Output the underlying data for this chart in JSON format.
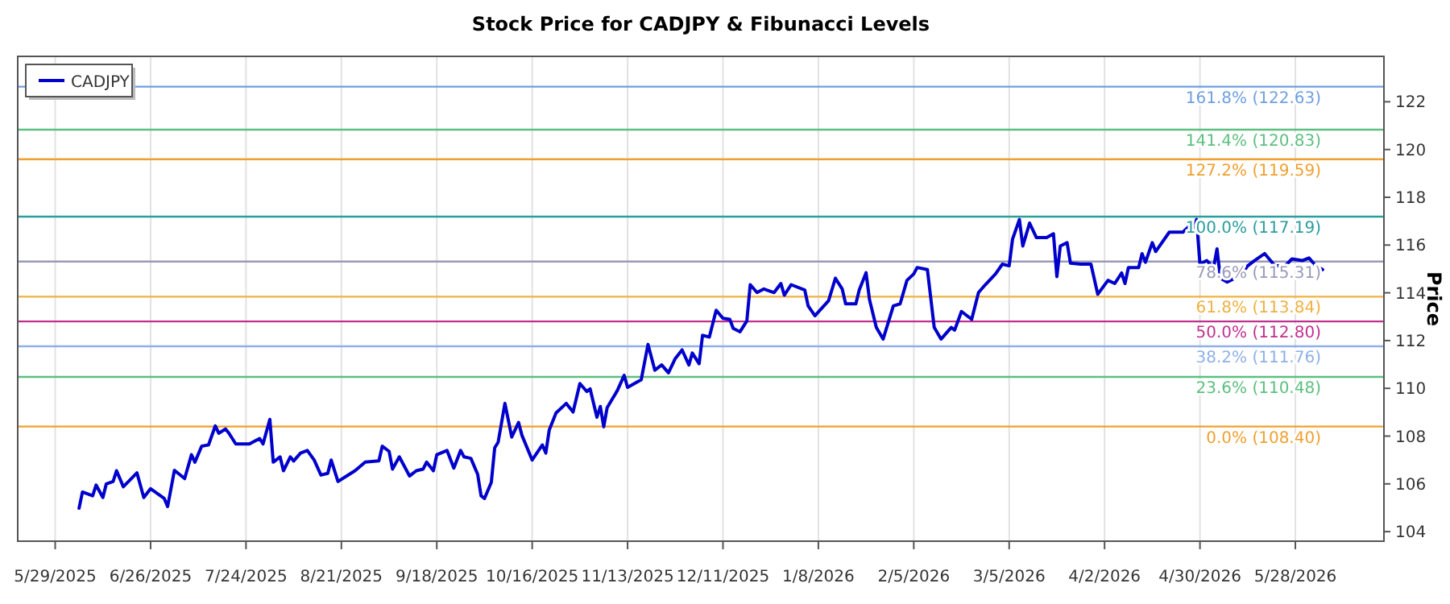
{
  "chart_data": {
    "type": "line",
    "title": "Stock Price for CADJPY & Fibunacci Levels",
    "ylabel": "Price",
    "x": [
      "2025-06-05",
      "2025-06-06",
      "2025-06-09",
      "2025-06-10",
      "2025-06-12",
      "2025-06-13",
      "2025-06-15",
      "2025-06-16",
      "2025-06-18",
      "2025-06-22",
      "2025-06-24",
      "2025-06-26",
      "2025-06-30",
      "2025-07-01",
      "2025-07-03",
      "2025-07-06",
      "2025-07-08",
      "2025-07-09",
      "2025-07-11",
      "2025-07-13",
      "2025-07-15",
      "2025-07-16",
      "2025-07-18",
      "2025-07-19",
      "2025-07-21",
      "2025-07-25",
      "2025-07-28",
      "2025-07-29",
      "2025-07-31",
      "2025-08-01",
      "2025-08-03",
      "2025-08-04",
      "2025-08-06",
      "2025-08-07",
      "2025-08-09",
      "2025-08-11",
      "2025-08-13",
      "2025-08-15",
      "2025-08-17",
      "2025-08-18",
      "2025-08-20",
      "2025-08-22",
      "2025-08-25",
      "2025-08-28",
      "2025-09-01",
      "2025-09-02",
      "2025-09-04",
      "2025-09-05",
      "2025-09-07",
      "2025-09-10",
      "2025-09-12",
      "2025-09-14",
      "2025-09-15",
      "2025-09-17",
      "2025-09-18",
      "2025-09-21",
      "2025-09-23",
      "2025-09-25",
      "2025-09-26",
      "2025-09-28",
      "2025-09-30",
      "2025-10-01",
      "2025-10-02",
      "2025-10-04",
      "2025-10-05",
      "2025-10-06",
      "2025-10-08",
      "2025-10-10",
      "2025-10-12",
      "2025-10-13",
      "2025-10-16",
      "2025-10-19",
      "2025-10-20",
      "2025-10-21",
      "2025-10-23",
      "2025-10-26",
      "2025-10-28",
      "2025-10-30",
      "2025-11-01",
      "2025-11-02",
      "2025-11-04",
      "2025-11-05",
      "2025-11-06",
      "2025-11-07",
      "2025-11-10",
      "2025-11-12",
      "2025-11-13",
      "2025-11-17",
      "2025-11-19",
      "2025-11-21",
      "2025-11-23",
      "2025-11-25",
      "2025-11-27",
      "2025-11-29",
      "2025-12-01",
      "2025-12-02",
      "2025-12-04",
      "2025-12-05",
      "2025-12-07",
      "2025-12-09",
      "2025-12-11",
      "2025-12-13",
      "2025-12-14",
      "2025-12-16",
      "2025-12-18",
      "2025-12-19",
      "2025-12-21",
      "2025-12-23",
      "2025-12-26",
      "2025-12-28",
      "2025-12-29",
      "2025-12-31",
      "2026-01-04",
      "2026-01-05",
      "2026-01-07",
      "2026-01-11",
      "2026-01-13",
      "2026-01-15",
      "2026-01-16",
      "2026-01-19",
      "2026-01-20",
      "2026-01-22",
      "2026-01-23",
      "2026-01-25",
      "2026-01-27",
      "2026-01-30",
      "2026-02-01",
      "2026-02-03",
      "2026-02-05",
      "2026-02-06",
      "2026-02-09",
      "2026-02-11",
      "2026-02-13",
      "2026-02-16",
      "2026-02-17",
      "2026-02-19",
      "2026-02-22",
      "2026-02-24",
      "2026-02-26",
      "2026-03-01",
      "2026-03-03",
      "2026-03-05",
      "2026-03-06",
      "2026-03-08",
      "2026-03-09",
      "2026-03-11",
      "2026-03-13",
      "2026-03-16",
      "2026-03-18",
      "2026-03-19",
      "2026-03-20",
      "2026-03-22",
      "2026-03-23",
      "2026-03-26",
      "2026-03-29",
      "2026-03-31",
      "2026-04-03",
      "2026-04-05",
      "2026-04-07",
      "2026-04-08",
      "2026-04-09",
      "2026-04-12",
      "2026-04-13",
      "2026-04-14",
      "2026-04-16",
      "2026-04-17",
      "2026-04-21",
      "2026-04-25",
      "2026-04-27",
      "2026-04-28",
      "2026-04-29",
      "2026-04-30",
      "2026-05-02",
      "2026-05-04",
      "2026-05-05",
      "2026-05-06",
      "2026-05-08",
      "2026-05-12",
      "2026-05-14",
      "2026-05-16",
      "2026-05-19",
      "2026-05-22",
      "2026-05-25",
      "2026-05-27",
      "2026-05-30",
      "2026-06-01",
      "2026-06-03",
      "2026-06-05"
    ],
    "series": [
      {
        "name": "CADJPY",
        "color": "#0000cc",
        "values": [
          104.98,
          105.66,
          105.5,
          105.95,
          105.43,
          106.0,
          106.1,
          106.55,
          105.88,
          106.46,
          105.43,
          105.8,
          105.39,
          105.05,
          106.57,
          106.22,
          107.22,
          106.91,
          107.58,
          107.63,
          108.43,
          108.12,
          108.3,
          108.12,
          107.67,
          107.67,
          107.9,
          107.67,
          108.7,
          106.91,
          107.13,
          106.55,
          107.13,
          106.96,
          107.29,
          107.4,
          107.0,
          106.37,
          106.44,
          107.0,
          106.1,
          106.28,
          106.55,
          106.91,
          106.96,
          107.58,
          107.36,
          106.62,
          107.13,
          106.33,
          106.55,
          106.62,
          106.91,
          106.55,
          107.22,
          107.4,
          106.66,
          107.4,
          107.13,
          107.07,
          106.4,
          105.5,
          105.39,
          106.06,
          107.51,
          107.74,
          109.37,
          107.96,
          108.57,
          108.03,
          107.0,
          107.63,
          107.29,
          108.25,
          108.97,
          109.37,
          109.01,
          110.2,
          109.87,
          109.98,
          108.79,
          109.24,
          108.39,
          109.19,
          109.91,
          110.54,
          110.04,
          110.36,
          111.84,
          110.76,
          110.98,
          110.65,
          111.25,
          111.61,
          110.98,
          111.48,
          111.03,
          112.22,
          112.15,
          113.27,
          112.93,
          112.89,
          112.51,
          112.37,
          112.82,
          114.34,
          114.01,
          114.16,
          114.01,
          114.39,
          113.9,
          114.34,
          114.12,
          113.45,
          113.04,
          113.67,
          114.61,
          114.16,
          113.54,
          113.54,
          114.12,
          114.84,
          113.72,
          112.55,
          112.06,
          113.45,
          113.54,
          114.52,
          114.79,
          115.06,
          114.97,
          112.55,
          112.06,
          112.55,
          112.44,
          113.22,
          112.89,
          114.01,
          114.34,
          114.79,
          115.2,
          115.13,
          116.25,
          117.07,
          115.96,
          116.92,
          116.31,
          116.31,
          116.47,
          114.68,
          115.96,
          116.1,
          115.24,
          115.2,
          115.2,
          113.94,
          114.52,
          114.39,
          114.83,
          114.39,
          115.06,
          115.06,
          115.64,
          115.28,
          116.1,
          115.73,
          116.54,
          116.54,
          116.81,
          116.58,
          117.07,
          115.2,
          115.35,
          115.06,
          115.84,
          114.61,
          114.45,
          114.74,
          115.13,
          115.35,
          115.64,
          115.13,
          115.13,
          115.42,
          115.35,
          115.46,
          115.13,
          114.97
        ]
      }
    ],
    "xlim": [
      "2025-05-18",
      "2026-06-23"
    ],
    "xticks": [
      {
        "value": "2025-05-29",
        "label": "5/29/2025"
      },
      {
        "value": "2025-06-26",
        "label": "6/26/2025"
      },
      {
        "value": "2025-07-24",
        "label": "7/24/2025"
      },
      {
        "value": "2025-08-21",
        "label": "8/21/2025"
      },
      {
        "value": "2025-09-18",
        "label": "9/18/2025"
      },
      {
        "value": "2025-10-16",
        "label": "10/16/2025"
      },
      {
        "value": "2025-11-13",
        "label": "11/13/2025"
      },
      {
        "value": "2025-12-11",
        "label": "12/11/2025"
      },
      {
        "value": "2026-01-08",
        "label": "1/8/2026"
      },
      {
        "value": "2026-02-05",
        "label": "2/5/2026"
      },
      {
        "value": "2026-03-05",
        "label": "3/5/2026"
      },
      {
        "value": "2026-04-02",
        "label": "4/2/2026"
      },
      {
        "value": "2026-04-30",
        "label": "4/30/2026"
      },
      {
        "value": "2026-05-28",
        "label": "5/28/2026"
      }
    ],
    "ylim": [
      103.6,
      123.9
    ],
    "yticks": [
      104,
      106,
      108,
      110,
      112,
      114,
      116,
      118,
      120,
      122
    ],
    "ref_lines": [
      {
        "axis": "y",
        "value": 122.63,
        "label": "161.8% (122.63)",
        "color": "#6f9fe0"
      },
      {
        "axis": "y",
        "value": 120.83,
        "label": "141.4% (120.83)",
        "color": "#5cbf7f"
      },
      {
        "axis": "y",
        "value": 119.59,
        "label": "127.2% (119.59)",
        "color": "#f0a030"
      },
      {
        "axis": "y",
        "value": 117.19,
        "label": "100.0% (117.19)",
        "color": "#2a9d9d"
      },
      {
        "axis": "y",
        "value": 115.31,
        "label": "78.6% (115.31)",
        "color": "#9a9ab8"
      },
      {
        "axis": "y",
        "value": 113.84,
        "label": "61.8% (113.84)",
        "color": "#f0b040"
      },
      {
        "axis": "y",
        "value": 112.8,
        "label": "50.0% (112.80)",
        "color": "#c0308f"
      },
      {
        "axis": "y",
        "value": 111.76,
        "label": "38.2% (111.76)",
        "color": "#8fb0e8"
      },
      {
        "axis": "y",
        "value": 110.48,
        "label": "23.6% (110.48)",
        "color": "#5cbf7f"
      },
      {
        "axis": "y",
        "value": 108.4,
        "label": "0.0% (108.40)",
        "color": "#f0a030"
      }
    ],
    "grid": "x",
    "legend": "top left",
    "marker": "none",
    "line_style": "solid"
  }
}
